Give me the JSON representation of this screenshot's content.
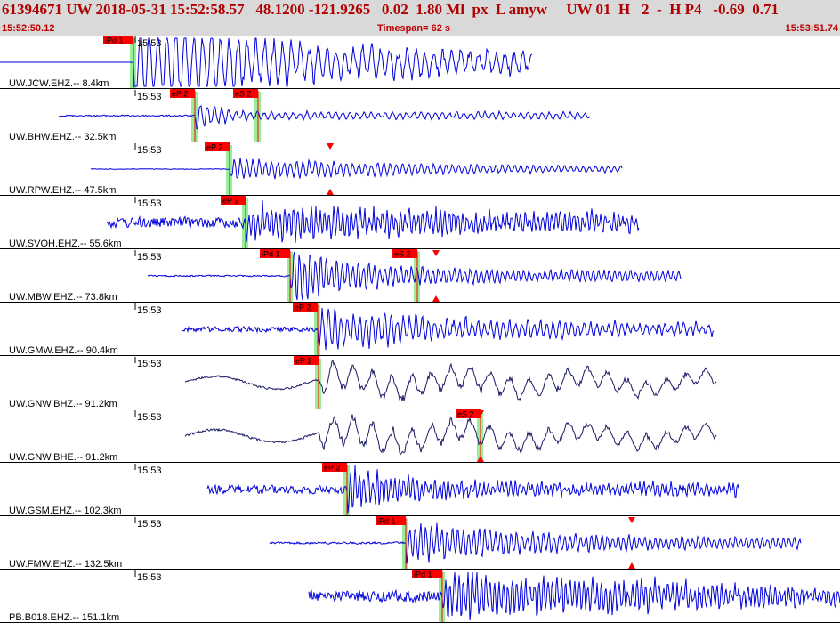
{
  "header": {
    "title": "61394671 UW 2018-05-31 15:52:58.57   48.1200 -121.9265   0.02  1.80 Ml  px  L amyw     UW 01  H   2  -  H P4   -0.69  0.71",
    "start_time": "15:52:50.12",
    "timespan": "Timespan=  62 s",
    "end_time": "15:53:51.74"
  },
  "colors": {
    "trace": "#0000dd",
    "trace_dark": "#1a1a66",
    "pick": "#ff0000",
    "pick_window": "#99ee99",
    "header_bg": "#d9d9d9",
    "header_text": "#b00000"
  },
  "channels": [
    {
      "label": "UW.JCW.EHZ.-- 8.4km",
      "time": "15:53",
      "trace_color": "#0000dd",
      "picks": [
        {
          "label": "iPd 1",
          "t": 150
        }
      ],
      "markers": [],
      "extent": [
        150,
        598
      ],
      "start": 0,
      "noise": 8,
      "onset": 150,
      "amp": 38,
      "decay": 150,
      "per": 10
    },
    {
      "label": "UW.BHW.EHZ.-- 32.5km",
      "time": "15:53",
      "trace_color": "#0000dd",
      "picks": [
        {
          "label": "eP 2",
          "t": 219
        },
        {
          "label": "eS 2",
          "t": 290
        }
      ],
      "markers": [],
      "extent": [
        66,
        663
      ],
      "start": 66,
      "noise": 2,
      "onset": 219,
      "amp": 14,
      "decay": 25,
      "per": 8
    },
    {
      "label": "UW.RPW.EHZ.-- 47.5km",
      "time": "15:53",
      "trace_color": "#0000dd",
      "picks": [
        {
          "label": "eP 2",
          "t": 258
        }
      ],
      "markers": [
        {
          "t": 371
        }
      ],
      "extent": [
        102,
        699
      ],
      "start": 102,
      "noise": 1,
      "onset": 258,
      "amp": 9,
      "decay": 200,
      "per": 7
    },
    {
      "label": "UW.SVOH.EHZ.-- 55.6km",
      "time": "15:53",
      "trace_color": "#0000dd",
      "picks": [
        {
          "label": "eP 2",
          "t": 276
        }
      ],
      "markers": [],
      "extent": [
        120,
        718
      ],
      "start": 120,
      "noise": 14,
      "onset": 276,
      "amp": 16,
      "decay": 300,
      "per": 5
    },
    {
      "label": "UW.MBW.EHZ.-- 73.8km",
      "time": "15:53",
      "trace_color": "#0000dd",
      "picks": [
        {
          "label": "iPd 1",
          "t": 326
        },
        {
          "label": "eS 2",
          "t": 469
        }
      ],
      "markers": [
        {
          "t": 490
        }
      ],
      "extent": [
        166,
        765
      ],
      "start": 166,
      "noise": 2,
      "onset": 326,
      "amp": 22,
      "decay": 90,
      "per": 6
    },
    {
      "label": "UW.GMW.EHZ.-- 90.4km",
      "time": "15:53",
      "trace_color": "#0000dd",
      "picks": [
        {
          "label": "eP 2",
          "t": 357
        }
      ],
      "markers": [],
      "extent": [
        205,
        802
      ],
      "start": 205,
      "noise": 7,
      "onset": 357,
      "amp": 18,
      "decay": 150,
      "per": 7
    },
    {
      "label": "UW.GNW.BHZ.-- 91.2km",
      "time": "15:53",
      "trace_color": "#1a1a66",
      "picks": [
        {
          "label": "eP 2",
          "t": 358
        }
      ],
      "markers": [],
      "extent": [
        208,
        805
      ],
      "start": 208,
      "noise": 8,
      "onset": 358,
      "amp": 12,
      "decay": 400,
      "per": 22
    },
    {
      "label": "UW.GNW.BHE.-- 91.2km",
      "time": "15:53",
      "trace_color": "#1a1a66",
      "picks": [
        {
          "label": "eS 2",
          "t": 540
        }
      ],
      "markers": [
        {
          "t": 540
        }
      ],
      "extent": [
        208,
        805
      ],
      "start": 208,
      "noise": 8,
      "onset": 358,
      "amp": 12,
      "decay": 400,
      "per": 22
    },
    {
      "label": "UW.GSM.EHZ.-- 102.3km",
      "time": "15:53",
      "trace_color": "#0000dd",
      "picks": [
        {
          "label": "eP 2",
          "t": 390
        }
      ],
      "markers": [],
      "extent": [
        233,
        830
      ],
      "start": 233,
      "noise": 11,
      "onset": 390,
      "amp": 22,
      "decay": 60,
      "per": 5
    },
    {
      "label": "UW.FMW.EHZ.-- 132.5km",
      "time": "15:53",
      "trace_color": "#0000dd",
      "picks": [
        {
          "label": "iPd 1",
          "t": 456
        }
      ],
      "markers": [
        {
          "t": 710
        }
      ],
      "extent": [
        303,
        900
      ],
      "start": 303,
      "noise": 3,
      "onset": 456,
      "amp": 20,
      "decay": 120,
      "per": 6
    },
    {
      "label": "PB.B018.EHZ.-- 151.1km",
      "time": "15:53",
      "trace_color": "#0000dd",
      "picks": [
        {
          "label": "iPd 1",
          "t": 497
        }
      ],
      "markers": [],
      "extent": [
        347,
        944
      ],
      "start": 347,
      "noise": 15,
      "onset": 497,
      "amp": 20,
      "decay": 300,
      "per": 5
    }
  ]
}
